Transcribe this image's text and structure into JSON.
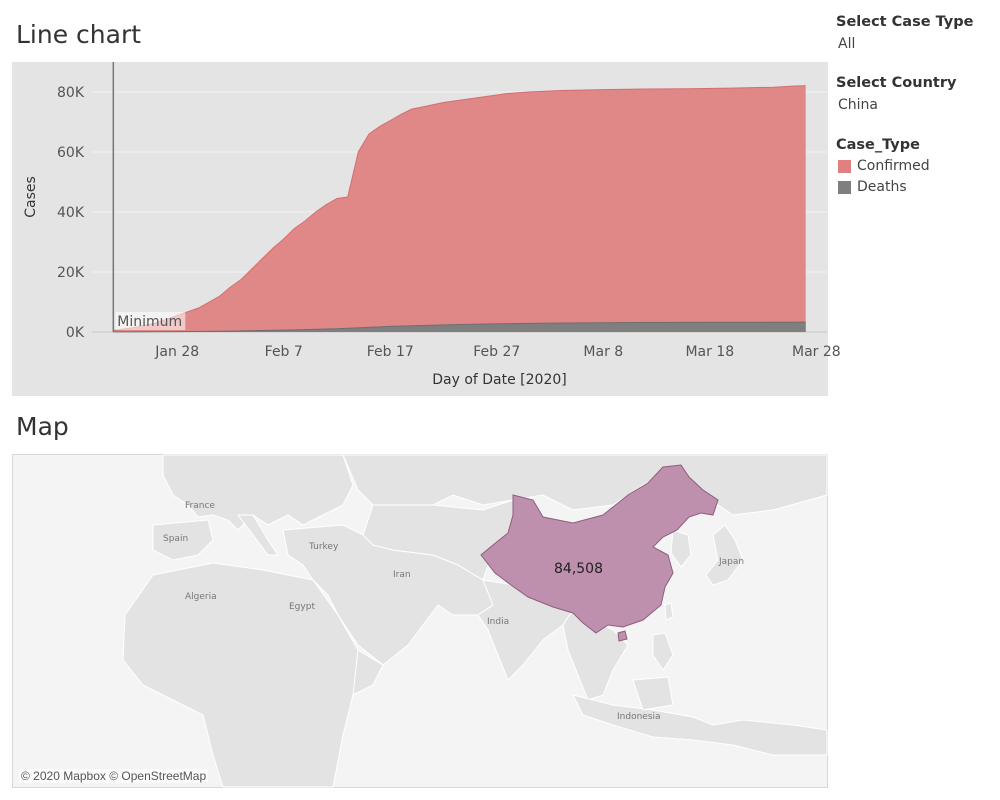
{
  "line_sheet": {
    "title": "Line chart"
  },
  "map_sheet": {
    "title": "Map",
    "attribution": "© 2020 Mapbox © OpenStreetMap",
    "highlight_country": "China",
    "highlight_value": "84,508",
    "highlight_color": "#bf8fae",
    "country_labels": [
      "France",
      "Spain",
      "Turkey",
      "Algeria",
      "Egypt",
      "Iran",
      "India",
      "Japan",
      "Indonesia"
    ]
  },
  "filters": {
    "case_type": {
      "title": "Select Case Type",
      "value": "All"
    },
    "country": {
      "title": "Select Country",
      "value": "China"
    }
  },
  "legend": {
    "title": "Case_Type",
    "items": [
      {
        "label": "Confirmed",
        "color": "#e08080"
      },
      {
        "label": "Deaths",
        "color": "#7f7f7f"
      }
    ]
  },
  "chart_data": {
    "type": "area",
    "xlabel": "Day of Date [2020]",
    "ylabel": "Cases",
    "x_ticks": [
      "Jan 28",
      "Feb 7",
      "Feb 17",
      "Feb 27",
      "Mar 8",
      "Mar 18",
      "Mar 28"
    ],
    "y_ticks": [
      "0K",
      "20K",
      "40K",
      "60K",
      "80K"
    ],
    "ylim": [
      0,
      90000
    ],
    "xlim": [
      "2020-01-20",
      "2020-03-29"
    ],
    "grid": "horizontal",
    "reference_line": {
      "date": "2020-01-22",
      "label": "Minimum"
    },
    "series": [
      {
        "name": "Confirmed",
        "color": "#e08080",
        "points": [
          [
            "2020-01-22",
            548
          ],
          [
            "2020-01-24",
            1500
          ],
          [
            "2020-01-26",
            3000
          ],
          [
            "2020-01-28",
            5500
          ],
          [
            "2020-01-30",
            8000
          ],
          [
            "2020-01-31",
            10000
          ],
          [
            "2020-02-01",
            12000
          ],
          [
            "2020-02-02",
            15000
          ],
          [
            "2020-02-03",
            17500
          ],
          [
            "2020-02-04",
            21000
          ],
          [
            "2020-02-05",
            24500
          ],
          [
            "2020-02-06",
            28000
          ],
          [
            "2020-02-07",
            31000
          ],
          [
            "2020-02-08",
            34500
          ],
          [
            "2020-02-09",
            37000
          ],
          [
            "2020-02-10",
            40000
          ],
          [
            "2020-02-11",
            42500
          ],
          [
            "2020-02-12",
            44500
          ],
          [
            "2020-02-13",
            45000
          ],
          [
            "2020-02-14",
            60000
          ],
          [
            "2020-02-15",
            66000
          ],
          [
            "2020-02-16",
            68500
          ],
          [
            "2020-02-17",
            70500
          ],
          [
            "2020-02-18",
            72500
          ],
          [
            "2020-02-19",
            74300
          ],
          [
            "2020-02-20",
            75000
          ],
          [
            "2020-02-22",
            76500
          ],
          [
            "2020-02-24",
            77500
          ],
          [
            "2020-02-26",
            78500
          ],
          [
            "2020-02-28",
            79500
          ],
          [
            "2020-03-01",
            80000
          ],
          [
            "2020-03-04",
            80500
          ],
          [
            "2020-03-08",
            80800
          ],
          [
            "2020-03-12",
            81000
          ],
          [
            "2020-03-16",
            81100
          ],
          [
            "2020-03-20",
            81300
          ],
          [
            "2020-03-24",
            81600
          ],
          [
            "2020-03-26",
            82000
          ],
          [
            "2020-03-27",
            82100
          ]
        ]
      },
      {
        "name": "Deaths",
        "color": "#7f7f7f",
        "points": [
          [
            "2020-01-22",
            17
          ],
          [
            "2020-01-28",
            130
          ],
          [
            "2020-02-02",
            300
          ],
          [
            "2020-02-07",
            640
          ],
          [
            "2020-02-12",
            1100
          ],
          [
            "2020-02-17",
            1870
          ],
          [
            "2020-02-22",
            2350
          ],
          [
            "2020-02-27",
            2750
          ],
          [
            "2020-03-03",
            2980
          ],
          [
            "2020-03-08",
            3100
          ],
          [
            "2020-03-14",
            3200
          ],
          [
            "2020-03-20",
            3250
          ],
          [
            "2020-03-27",
            3300
          ]
        ]
      }
    ]
  }
}
